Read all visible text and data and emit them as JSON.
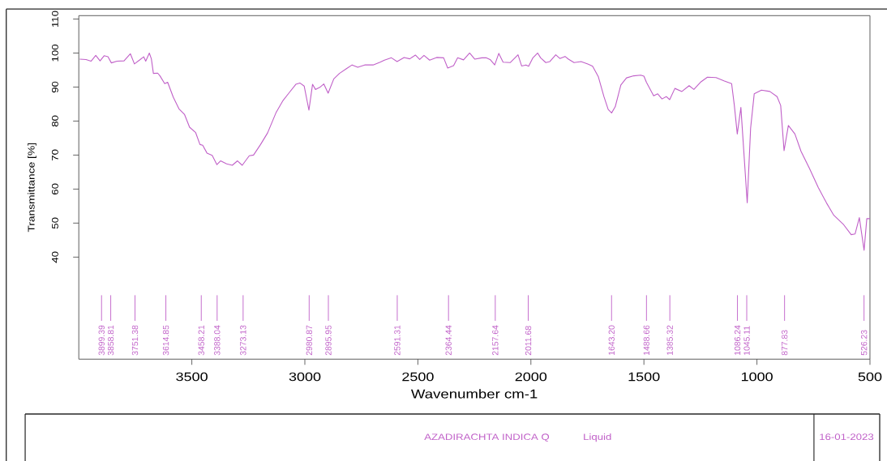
{
  "chart_data": {
    "type": "line",
    "xlabel": "Wavenumber cm-1",
    "ylabel": "Transmittance [%]",
    "x": [
      3996,
      3968,
      3946,
      3925,
      3906,
      3888,
      3871,
      3856,
      3831,
      3800,
      3772,
      3754,
      3732,
      3713,
      3704,
      3688,
      3679,
      3670,
      3651,
      3641,
      3620,
      3607,
      3582,
      3557,
      3532,
      3510,
      3483,
      3464,
      3452,
      3433,
      3410,
      3389,
      3373,
      3346,
      3321,
      3298,
      3277,
      3246,
      3227,
      3196,
      3165,
      3128,
      3096,
      3071,
      3040,
      3022,
      3003,
      2982,
      2966,
      2953,
      2934,
      2916,
      2897,
      2872,
      2847,
      2816,
      2791,
      2766,
      2735,
      2698,
      2667,
      2648,
      2617,
      2592,
      2561,
      2536,
      2511,
      2492,
      2473,
      2448,
      2417,
      2386,
      2368,
      2342,
      2324,
      2298,
      2271,
      2248,
      2217,
      2198,
      2179,
      2160,
      2142,
      2123,
      2091,
      2057,
      2041,
      2022,
      2010,
      1991,
      1970,
      1957,
      1934,
      1916,
      1890,
      1872,
      1849,
      1834,
      1809,
      1778,
      1746,
      1727,
      1702,
      1677,
      1658,
      1643,
      1627,
      1602,
      1577,
      1545,
      1514,
      1500,
      1489,
      1457,
      1439,
      1420,
      1401,
      1386,
      1363,
      1332,
      1300,
      1279,
      1250,
      1219,
      1181,
      1144,
      1112,
      1100,
      1087,
      1071,
      1043,
      1028,
      1012,
      980,
      943,
      911,
      895,
      880,
      861,
      832,
      805,
      767,
      729,
      692,
      660,
      616,
      583,
      566,
      547,
      526,
      514,
      500
    ],
    "series": [
      {
        "color": "#c060c8",
        "values": [
          98.2,
          98.1,
          97.6,
          99.3,
          97.7,
          99.2,
          98.9,
          97.1,
          97.6,
          97.7,
          99.8,
          96.8,
          97.9,
          98.9,
          97.6,
          100.0,
          98.3,
          94.0,
          94.1,
          93.3,
          91.0,
          91.4,
          87.0,
          83.6,
          81.9,
          78.2,
          76.6,
          73.1,
          72.9,
          70.6,
          69.9,
          67.2,
          68.3,
          67.4,
          67.0,
          68.3,
          67.0,
          69.8,
          70.0,
          73.1,
          76.5,
          82.4,
          86.1,
          88.2,
          90.8,
          91.2,
          90.3,
          83.2,
          90.8,
          89.3,
          89.9,
          90.9,
          88.2,
          92.4,
          94.0,
          95.4,
          96.5,
          95.8,
          96.5,
          96.5,
          97.3,
          97.9,
          98.6,
          97.5,
          98.7,
          98.3,
          99.4,
          98.1,
          99.3,
          97.9,
          98.7,
          98.6,
          95.6,
          96.3,
          98.6,
          98.0,
          100.0,
          98.2,
          98.6,
          98.6,
          98.0,
          96.5,
          99.9,
          97.3,
          97.2,
          99.5,
          96.2,
          96.5,
          96.1,
          98.6,
          100.0,
          98.6,
          97.2,
          97.5,
          99.5,
          98.4,
          99.0,
          98.2,
          97.2,
          97.5,
          96.7,
          96.1,
          93.1,
          87.2,
          83.4,
          82.4,
          84.2,
          90.6,
          92.7,
          93.3,
          93.5,
          93.2,
          91.4,
          87.4,
          88.0,
          86.5,
          87.2,
          86.3,
          89.6,
          88.7,
          90.4,
          89.3,
          91.4,
          92.9,
          92.8,
          91.8,
          91.0,
          84.6,
          76.2,
          84.0,
          56.0,
          77.9,
          88.0,
          89.1,
          88.7,
          87.2,
          84.6,
          71.3,
          78.7,
          76.2,
          71.1,
          66.0,
          60.5,
          55.9,
          52.3,
          49.5,
          46.6,
          46.8,
          51.6,
          42.0,
          51.3,
          51.3
        ]
      }
    ],
    "xlim": [
      4000,
      500
    ],
    "xticks": [
      3500,
      3000,
      2500,
      2000,
      1500,
      1000,
      500
    ],
    "ylim": [
      10,
      111
    ],
    "yticks": [
      40,
      50,
      60,
      70,
      80,
      90,
      100,
      110
    ],
    "annotations": [
      {
        "text": "3899.39",
        "x": 3899.39
      },
      {
        "text": "3858.81",
        "x": 3858.81
      },
      {
        "text": "3751.38",
        "x": 3751.38
      },
      {
        "text": "3614.85",
        "x": 3614.85
      },
      {
        "text": "3458.21",
        "x": 3458.21
      },
      {
        "text": "3388.04",
        "x": 3388.04
      },
      {
        "text": "3273.13",
        "x": 3273.13
      },
      {
        "text": "2980.87",
        "x": 2980.87
      },
      {
        "text": "2895.95",
        "x": 2895.95
      },
      {
        "text": "2591.31",
        "x": 2591.31
      },
      {
        "text": "2364.44",
        "x": 2364.44
      },
      {
        "text": "2157.64",
        "x": 2157.64
      },
      {
        "text": "2011.68",
        "x": 2011.68
      },
      {
        "text": "1643.20",
        "x": 1643.2
      },
      {
        "text": "1488.66",
        "x": 1488.66
      },
      {
        "text": "1385.32",
        "x": 1385.32
      },
      {
        "text": "1086.24",
        "x": 1086.24
      },
      {
        "text": "1045.11",
        "x": 1045.11
      },
      {
        "text": "877.83",
        "x": 877.83
      },
      {
        "text": "526.23",
        "x": 526.23
      },
      "AZADIRACHTA INDICA Q",
      "Liquid",
      "16-01-2023"
    ]
  }
}
